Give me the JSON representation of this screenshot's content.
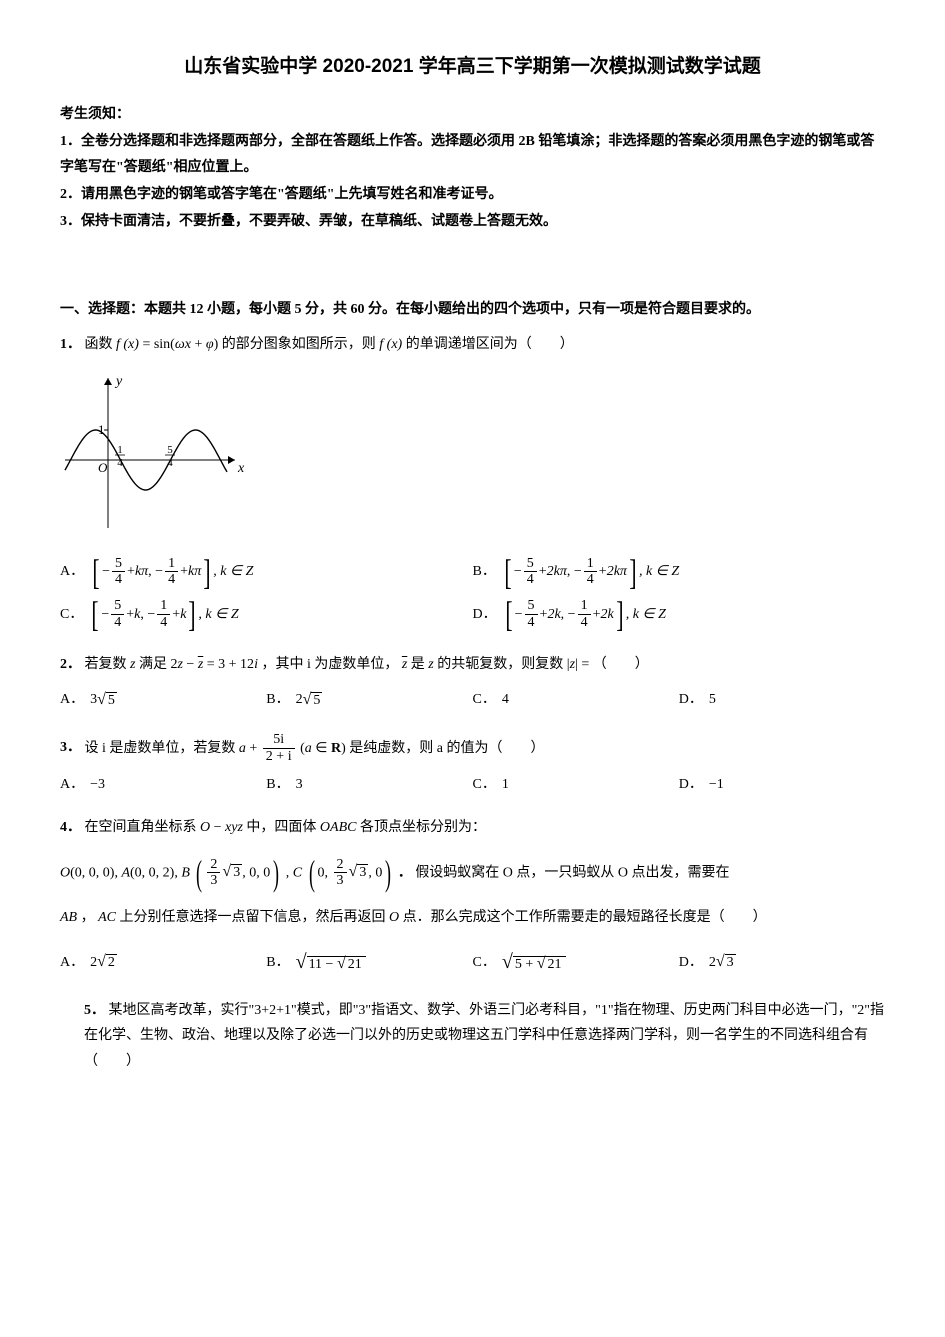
{
  "title": "山东省实验中学 2020-2021 学年高三下学期第一次模拟测试数学试题",
  "instructions": {
    "header": "考生须知：",
    "lines": [
      "1．全卷分选择题和非选择题两部分，全部在答题纸上作答。选择题必须用 2B 铅笔填涂；非选择题的答案必须用黑色字迹的钢笔或答字笔写在\"答题纸\"相应位置上。",
      "2．请用黑色字迹的钢笔或答字笔在\"答题纸\"上先填写姓名和准考证号。",
      "3．保持卡面清洁，不要折叠，不要弄破、弄皱，在草稿纸、试题卷上答题无效。"
    ]
  },
  "section1": {
    "header": "一、选择题：本题共 12 小题，每小题 5 分，共 60 分。在每小题给出的四个选项中，只有一项是符合题目要求的。"
  },
  "q1": {
    "num": "1．",
    "text_before": "函数 ",
    "func": "f (x) = sin(ωx + φ)",
    "text_mid": " 的部分图象如图所示，则 ",
    "func2": "f (x)",
    "text_after": " 的单调递增区间为（　　）",
    "graph": {
      "width": 195,
      "height": 165,
      "x_axis_y": 92,
      "y_axis_x": 48,
      "x_range": [
        -45,
        165
      ],
      "y_range": [
        -60,
        60
      ],
      "y_tick_label": "1",
      "y_tick_pos": 62,
      "x_ticks": [
        {
          "label_num": "1",
          "label_den": "4",
          "x": 68
        },
        {
          "label_num": "5",
          "label_den": "4",
          "x": 118
        }
      ],
      "axis_labels": {
        "x": "x",
        "y": "y",
        "o": "O"
      },
      "curve_color": "#000000",
      "sine_phase_shift": -0.25,
      "sine_period": 2.0,
      "sine_amplitude": 30,
      "x_scale": 50
    },
    "opts": {
      "A": {
        "a": "5",
        "b": "4",
        "c": "1",
        "d": "4",
        "suffix": "kπ",
        "tail": ", k ∈ Z"
      },
      "B": {
        "a": "5",
        "b": "4",
        "c": "1",
        "d": "4",
        "suffix": "2kπ",
        "tail": ", k ∈ Z"
      },
      "C": {
        "a": "5",
        "b": "4",
        "c": "1",
        "d": "4",
        "suffix": "k",
        "tail": ", k ∈ Z"
      },
      "D": {
        "a": "5",
        "b": "4",
        "c": "1",
        "d": "4",
        "suffix": "2k",
        "tail": ", k ∈ Z"
      }
    }
  },
  "q2": {
    "num": "2．",
    "text": "若复数 z 满足 2z − z̄ = 3 + 12i ，其中 i 为虚数单位， z̄ 是 z 的共轭复数，则复数 |z| = （　　）",
    "opts": {
      "A": "3√5",
      "B": "2√5",
      "C": "4",
      "D": "5"
    }
  },
  "q3": {
    "num": "3．",
    "text_before": "设 i 是虚数单位，若复数 ",
    "frac_num": "5i",
    "frac_den": "2 + i",
    "text_mid": "a +",
    "text_after": "(a ∈ R) 是纯虚数，则 a 的值为（　　）",
    "opts": {
      "A": "−3",
      "B": "3",
      "C": "1",
      "D": "−1"
    }
  },
  "q4": {
    "num": "4．",
    "text1": "在空间直角坐标系 O − xyz 中，四面体 OABC 各顶点坐标分别为：",
    "coords_line": "O(0,0,0), A(0,0,2), B(2/3√3,0,0), C(0,2/3√3,0)．",
    "text2": "假设蚂蚁窝在 O 点，一只蚂蚁从 O 点出发，需要在",
    "text3": "AB ， AC 上分别任意选择一点留下信息，然后再返回 O 点．那么完成这个工作所需要走的最短路径长度是（　　）",
    "opts": {
      "A": "2√2",
      "B": "√(11−√21)",
      "C": "√(5+√21)",
      "D": "2√3"
    }
  },
  "q5": {
    "num": "5．",
    "text": "某地区高考改革，实行\"3+2+1\"模式，即\"3\"指语文、数学、外语三门必考科目，\"1\"指在物理、历史两门科目中必选一门，\"2\"指在化学、生物、政治、地理以及除了必选一门以外的历史或物理这五门学科中任意选择两门学科，则一名学生的不同选科组合有（　　）"
  },
  "colors": {
    "text": "#000000",
    "background": "#ffffff"
  },
  "labels": {
    "A": "A．",
    "B": "B．",
    "C": "C．",
    "D": "D．"
  }
}
